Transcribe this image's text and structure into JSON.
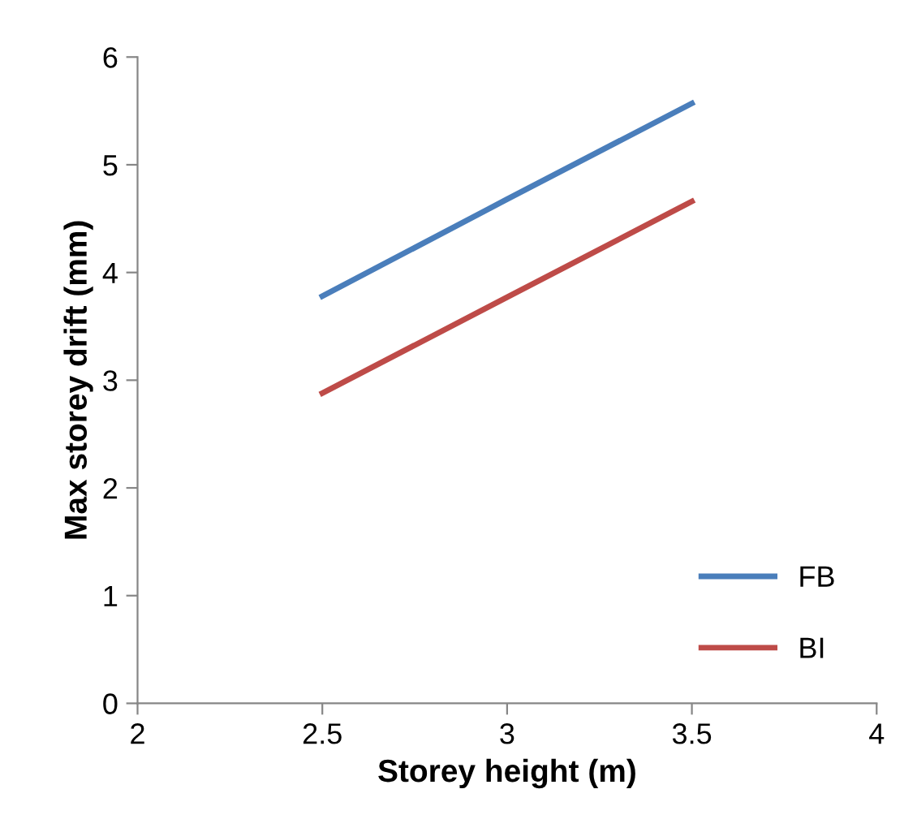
{
  "chart_data": {
    "type": "line",
    "xlabel": "Storey height (m)",
    "ylabel": "Max storey drift (mm)",
    "x": [
      2.5,
      3,
      3.5
    ],
    "series": [
      {
        "name": "FB",
        "color": "#4a7ebb",
        "values": [
          3.78,
          4.68,
          5.57
        ]
      },
      {
        "name": "BI",
        "color": "#be4b48",
        "values": [
          2.88,
          3.77,
          4.66
        ]
      }
    ],
    "xlim": [
      2,
      4
    ],
    "xticks": [
      2,
      2.5,
      3,
      3.5,
      4
    ],
    "ylim": [
      0,
      6
    ],
    "yticks": [
      0,
      1,
      2,
      3,
      4,
      5,
      6
    ],
    "grid": false,
    "legend": "bottom right",
    "marker": "none",
    "line_style": "solid"
  }
}
